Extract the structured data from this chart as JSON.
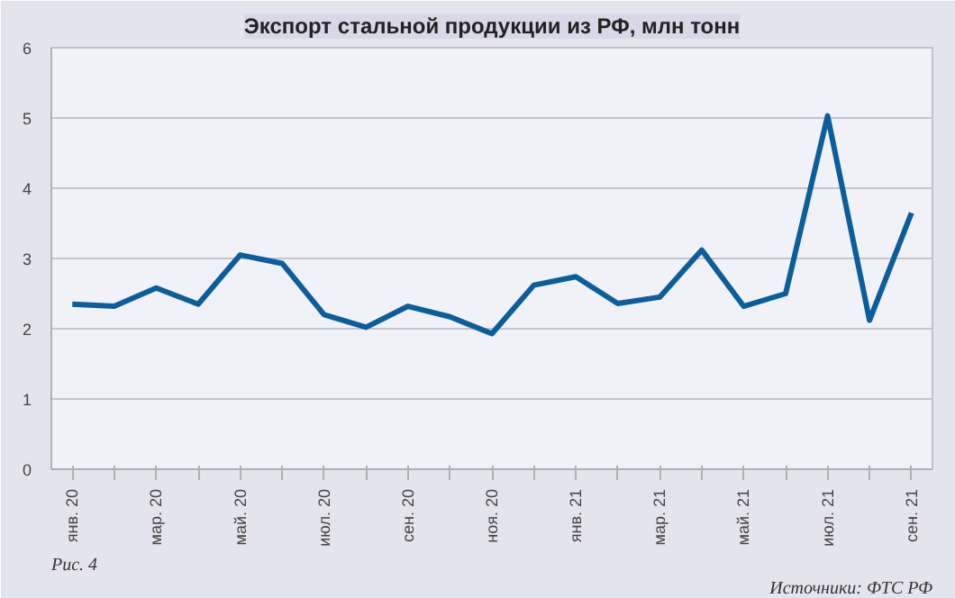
{
  "chart_data": {
    "type": "line",
    "title": "Экспорт стальной продукции из РФ, млн тонн",
    "categories": [
      "янв. 20",
      null,
      "мар. 20",
      null,
      "май. 20",
      null,
      "июл. 20",
      null,
      "сен. 20",
      null,
      "ноя. 20",
      null,
      "янв. 21",
      null,
      "мар. 21",
      null,
      "май. 21",
      null,
      "июл. 21",
      null,
      "сен. 21"
    ],
    "series": [
      {
        "color": "#0a5e9c",
        "values": [
          2.35,
          2.32,
          2.58,
          2.35,
          3.05,
          2.93,
          2.2,
          2.02,
          2.32,
          2.17,
          1.93,
          2.62,
          2.74,
          2.36,
          2.45,
          3.12,
          2.32,
          2.5,
          5.03,
          2.12,
          3.65
        ]
      }
    ],
    "ylim": [
      0,
      6
    ],
    "yticks": [
      0,
      1,
      2,
      3,
      4,
      5,
      6
    ],
    "grid": "y",
    "marker": "none",
    "line_style": "solid",
    "annotations": [
      "Рис. 4",
      "Источники: ФТС РФ"
    ]
  }
}
